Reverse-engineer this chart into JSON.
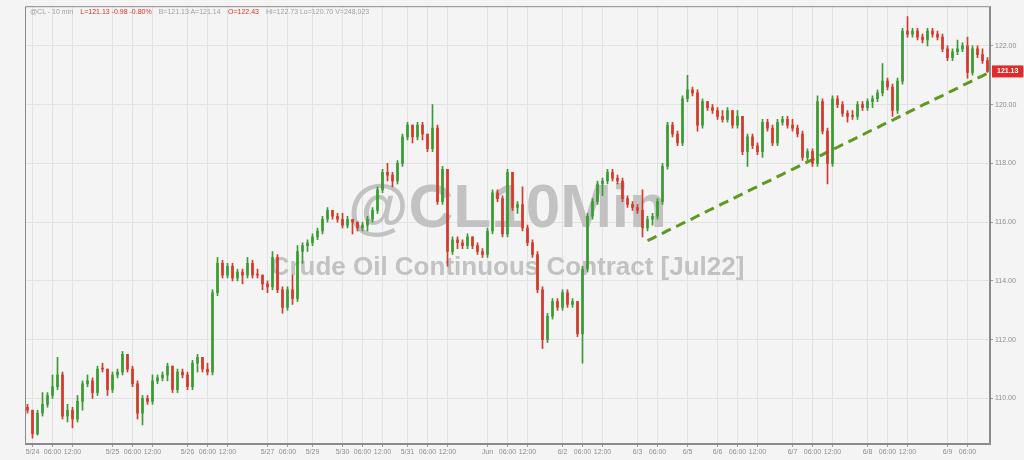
{
  "chart_data": {
    "type": "candlestick",
    "title": "@CL10Min",
    "subtitle": "Crude Oil Continuous Contract [Jul22]",
    "annotations": [
      "@CL - 10 min",
      "L=121.13 -0.98 -0.80%",
      "B=121.13 A=121.14",
      "O=122.43",
      "Hi=122.73 Lo=120.70 V=248,023",
      {
        "text": "121.13",
        "y": 121.13
      }
    ],
    "categories": [
      null,
      "5/24",
      null,
      null,
      null,
      "06:00",
      null,
      null,
      null,
      "12:00",
      null,
      null,
      null,
      null,
      null,
      null,
      null,
      "5/25",
      null,
      null,
      null,
      "06:00",
      null,
      null,
      null,
      "12:00",
      null,
      null,
      null,
      null,
      null,
      null,
      "5/26",
      null,
      null,
      null,
      "06:00",
      null,
      null,
      null,
      "12:00",
      null,
      null,
      null,
      null,
      null,
      null,
      null,
      "5/27",
      null,
      null,
      null,
      "06:00",
      null,
      null,
      null,
      null,
      "5/29",
      null,
      null,
      null,
      null,
      null,
      "5/30",
      null,
      null,
      null,
      "06:00",
      null,
      null,
      null,
      "12:00",
      null,
      null,
      null,
      null,
      "5/31",
      null,
      null,
      null,
      "06:00",
      null,
      null,
      null,
      "12:00",
      null,
      null,
      null,
      null,
      null,
      null,
      null,
      "Jun",
      null,
      null,
      null,
      "06:00",
      null,
      null,
      null,
      "12:00",
      null,
      null,
      null,
      null,
      null,
      null,
      "6/2",
      null,
      null,
      null,
      "06:00",
      null,
      null,
      null,
      "12:00",
      null,
      null,
      null,
      null,
      null,
      null,
      "6/3",
      null,
      null,
      null,
      "06:00",
      null,
      null,
      null,
      null,
      null,
      "6/5",
      null,
      null,
      null,
      null,
      null,
      "6/6",
      null,
      null,
      null,
      "06:00",
      null,
      null,
      null,
      "12:00",
      null,
      null,
      null,
      null,
      null,
      null,
      "6/7",
      null,
      null,
      null,
      "06:00",
      null,
      null,
      null,
      "12:00",
      null,
      null,
      null,
      null,
      null,
      null,
      "6/8",
      null,
      null,
      null,
      "06:00",
      null,
      null,
      null,
      "12:00",
      null,
      null,
      null,
      null,
      null,
      null,
      null,
      "6/9",
      null,
      null,
      null,
      "06:00",
      null,
      null,
      null,
      null
    ],
    "ylim": [
      108.45,
      123.35
    ],
    "yticks": [
      {
        "value": 110,
        "label": "110.00"
      },
      {
        "value": 112,
        "label": "112.00"
      },
      {
        "value": 114,
        "label": "114.00"
      },
      {
        "value": 116,
        "label": "116.00"
      },
      {
        "value": 118,
        "label": "118.00"
      },
      {
        "value": 120,
        "label": "120.00"
      },
      {
        "value": 122,
        "label": "122.00"
      }
    ],
    "grid": true,
    "ohlc": [
      [
        109.7,
        109.8,
        109.5,
        109.6
      ],
      [
        109.6,
        109.6,
        108.65,
        108.8
      ],
      [
        108.8,
        109.6,
        108.75,
        109.5
      ],
      [
        109.5,
        110.2,
        109.4,
        109.8
      ],
      [
        109.8,
        110.2,
        109.7,
        110.1
      ],
      [
        110.1,
        110.8,
        110.0,
        110.4
      ],
      [
        110.4,
        111.4,
        110.3,
        110.8
      ],
      [
        110.8,
        110.9,
        109.3,
        109.4
      ],
      [
        109.4,
        109.8,
        109.2,
        109.6
      ],
      [
        109.6,
        109.7,
        109.0,
        109.3
      ],
      [
        109.3,
        110.1,
        109.2,
        109.9
      ],
      [
        109.9,
        110.6,
        109.6,
        110.5
      ],
      [
        110.5,
        110.8,
        110.4,
        110.6
      ],
      [
        110.6,
        110.7,
        110.0,
        110.2
      ],
      [
        110.2,
        111.1,
        110.1,
        111.0
      ],
      [
        111.0,
        111.2,
        110.9,
        111.0
      ],
      [
        111.0,
        111.0,
        110.1,
        110.3
      ],
      [
        110.3,
        110.9,
        110.2,
        110.8
      ],
      [
        110.8,
        111.0,
        110.7,
        110.9
      ],
      [
        110.9,
        111.6,
        110.8,
        111.5
      ],
      [
        111.5,
        111.5,
        110.9,
        111.0
      ],
      [
        111.0,
        111.1,
        110.4,
        110.5
      ],
      [
        110.5,
        110.6,
        109.3,
        109.5
      ],
      [
        109.5,
        110.1,
        109.1,
        110.0
      ],
      [
        110.0,
        110.1,
        109.8,
        109.9
      ],
      [
        109.9,
        110.8,
        109.8,
        110.6
      ],
      [
        110.6,
        110.8,
        110.5,
        110.7
      ],
      [
        110.7,
        110.9,
        110.6,
        110.8
      ],
      [
        110.8,
        111.2,
        110.6,
        111.1
      ],
      [
        111.1,
        111.1,
        110.2,
        110.3
      ],
      [
        110.3,
        111.0,
        110.2,
        110.9
      ],
      [
        110.9,
        111.0,
        110.7,
        110.8
      ],
      [
        110.8,
        110.9,
        110.3,
        110.4
      ],
      [
        110.4,
        111.3,
        110.3,
        111.2
      ],
      [
        111.2,
        111.5,
        110.9,
        111.4
      ],
      [
        111.4,
        111.4,
        110.9,
        111.0
      ],
      [
        111.0,
        111.2,
        110.8,
        110.9
      ],
      [
        110.9,
        113.7,
        110.8,
        113.6
      ],
      [
        113.6,
        114.8,
        113.5,
        114.6
      ],
      [
        114.6,
        114.7,
        114.1,
        114.2
      ],
      [
        114.2,
        114.6,
        114.1,
        114.5
      ],
      [
        114.5,
        114.6,
        114.0,
        114.1
      ],
      [
        114.1,
        114.4,
        114.0,
        114.3
      ],
      [
        114.3,
        114.4,
        113.9,
        114.2
      ],
      [
        114.2,
        114.8,
        114.1,
        114.6
      ],
      [
        114.6,
        114.7,
        114.1,
        114.2
      ],
      [
        114.2,
        114.4,
        114.1,
        114.2
      ],
      [
        114.2,
        114.2,
        113.7,
        113.9
      ],
      [
        113.9,
        114.0,
        113.6,
        113.8
      ],
      [
        113.8,
        115.0,
        113.7,
        114.8
      ],
      [
        114.8,
        114.9,
        113.6,
        113.7
      ],
      [
        113.7,
        113.8,
        112.9,
        113.1
      ],
      [
        113.1,
        113.8,
        113.0,
        113.7
      ],
      [
        113.7,
        114.2,
        113.2,
        113.4
      ],
      [
        113.4,
        115.2,
        113.3,
        115.0
      ],
      [
        115.0,
        115.3,
        114.6,
        115.2
      ],
      [
        115.2,
        115.4,
        115.0,
        115.3
      ],
      [
        115.3,
        115.6,
        115.2,
        115.5
      ],
      [
        115.5,
        115.8,
        115.4,
        115.7
      ],
      [
        115.7,
        116.2,
        115.6,
        116.1
      ],
      [
        116.1,
        116.5,
        116.0,
        116.4
      ],
      [
        116.4,
        116.4,
        116.1,
        116.2
      ],
      [
        116.2,
        116.3,
        116.0,
        116.1
      ],
      [
        116.1,
        116.3,
        115.8,
        115.9
      ],
      [
        115.9,
        116.2,
        115.8,
        116.1
      ],
      [
        116.1,
        116.1,
        115.6,
        116.0
      ],
      [
        116.0,
        116.0,
        115.7,
        115.8
      ],
      [
        115.8,
        116.0,
        115.7,
        115.9
      ],
      [
        115.9,
        116.2,
        115.7,
        116.1
      ],
      [
        116.1,
        116.5,
        116.0,
        116.4
      ],
      [
        116.4,
        117.2,
        116.3,
        117.1
      ],
      [
        117.1,
        117.8,
        117.0,
        117.7
      ],
      [
        117.7,
        118.0,
        117.4,
        117.6
      ],
      [
        117.6,
        117.7,
        117.2,
        117.4
      ],
      [
        117.4,
        118.1,
        117.3,
        118.0
      ],
      [
        118.0,
        119.0,
        117.9,
        118.9
      ],
      [
        118.9,
        119.4,
        118.8,
        119.3
      ],
      [
        119.3,
        119.3,
        118.7,
        118.9
      ],
      [
        118.9,
        119.4,
        118.8,
        119.3
      ],
      [
        119.3,
        119.4,
        118.8,
        119.0
      ],
      [
        119.0,
        119.0,
        118.4,
        118.5
      ],
      [
        118.5,
        120.0,
        118.4,
        119.2
      ],
      [
        119.2,
        119.3,
        116.6,
        116.7
      ],
      [
        116.7,
        117.9,
        116.6,
        117.8
      ],
      [
        117.8,
        117.8,
        114.5,
        115.0
      ],
      [
        115.0,
        115.5,
        114.9,
        115.4
      ],
      [
        115.4,
        115.5,
        115.1,
        115.3
      ],
      [
        115.3,
        115.4,
        115.1,
        115.2
      ],
      [
        115.2,
        115.6,
        115.1,
        115.5
      ],
      [
        115.5,
        115.5,
        115.1,
        115.2
      ],
      [
        115.2,
        115.3,
        114.9,
        115.0
      ],
      [
        115.0,
        115.1,
        114.8,
        114.9
      ],
      [
        114.9,
        115.8,
        114.8,
        115.7
      ],
      [
        115.7,
        117.1,
        115.6,
        117.0
      ],
      [
        117.0,
        117.1,
        116.7,
        116.8
      ],
      [
        116.8,
        116.9,
        115.5,
        115.6
      ],
      [
        115.6,
        117.8,
        115.5,
        117.7
      ],
      [
        117.7,
        117.7,
        116.4,
        116.5
      ],
      [
        116.5,
        116.7,
        116.3,
        116.6
      ],
      [
        116.6,
        117.2,
        115.7,
        115.8
      ],
      [
        115.8,
        115.9,
        115.2,
        115.3
      ],
      [
        115.3,
        115.4,
        114.8,
        114.9
      ],
      [
        114.9,
        115.0,
        113.6,
        113.7
      ],
      [
        113.7,
        113.8,
        111.7,
        112.0
      ],
      [
        112.0,
        112.9,
        111.9,
        112.8
      ],
      [
        112.8,
        113.4,
        112.7,
        113.3
      ],
      [
        113.3,
        113.4,
        113.0,
        113.1
      ],
      [
        113.1,
        113.7,
        113.0,
        113.6
      ],
      [
        113.6,
        113.7,
        113.1,
        113.2
      ],
      [
        113.2,
        113.4,
        113.1,
        113.3
      ],
      [
        113.3,
        113.3,
        112.1,
        112.2
      ],
      [
        112.2,
        114.5,
        111.2,
        114.4
      ],
      [
        114.4,
        116.3,
        114.3,
        116.2
      ],
      [
        116.2,
        116.8,
        116.1,
        116.7
      ],
      [
        116.7,
        117.4,
        116.6,
        117.3
      ],
      [
        117.3,
        117.5,
        116.9,
        117.4
      ],
      [
        117.4,
        117.8,
        117.3,
        117.7
      ],
      [
        117.7,
        117.8,
        117.4,
        117.5
      ],
      [
        117.5,
        117.6,
        117.3,
        117.4
      ],
      [
        117.4,
        117.5,
        116.7,
        116.8
      ],
      [
        116.8,
        116.9,
        116.5,
        116.6
      ],
      [
        116.6,
        116.7,
        116.4,
        116.5
      ],
      [
        116.5,
        116.6,
        116.3,
        116.4
      ],
      [
        116.4,
        117.1,
        115.5,
        115.8
      ],
      [
        115.8,
        116.2,
        115.7,
        116.1
      ],
      [
        116.1,
        116.3,
        115.9,
        116.2
      ],
      [
        116.2,
        116.8,
        116.1,
        116.7
      ],
      [
        116.7,
        118.0,
        116.6,
        117.9
      ],
      [
        117.9,
        119.4,
        117.8,
        119.3
      ],
      [
        119.3,
        119.4,
        118.9,
        119.0
      ],
      [
        119.0,
        119.1,
        118.6,
        118.7
      ],
      [
        118.7,
        120.3,
        118.6,
        120.2
      ],
      [
        120.2,
        121.0,
        120.1,
        120.5
      ],
      [
        120.5,
        120.6,
        120.3,
        120.4
      ],
      [
        120.4,
        120.5,
        119.1,
        119.3
      ],
      [
        119.3,
        120.2,
        119.2,
        120.1
      ],
      [
        120.1,
        120.1,
        119.8,
        119.9
      ],
      [
        119.9,
        120.0,
        119.7,
        119.8
      ],
      [
        119.8,
        119.9,
        119.5,
        119.6
      ],
      [
        119.6,
        119.8,
        119.4,
        119.5
      ],
      [
        119.5,
        119.9,
        119.4,
        119.8
      ],
      [
        119.8,
        119.8,
        119.2,
        119.3
      ],
      [
        119.3,
        119.8,
        119.2,
        119.6
      ],
      [
        119.6,
        119.6,
        118.3,
        118.4
      ],
      [
        118.4,
        119.0,
        117.9,
        118.9
      ],
      [
        118.9,
        119.0,
        118.5,
        118.6
      ],
      [
        118.6,
        118.7,
        118.3,
        118.4
      ],
      [
        118.4,
        119.5,
        118.2,
        119.4
      ],
      [
        119.4,
        119.5,
        119.1,
        119.2
      ],
      [
        119.2,
        119.3,
        118.6,
        118.7
      ],
      [
        118.7,
        119.5,
        118.6,
        119.4
      ],
      [
        119.4,
        119.6,
        119.3,
        119.5
      ],
      [
        119.5,
        119.6,
        119.2,
        119.3
      ],
      [
        119.3,
        119.5,
        119.1,
        119.2
      ],
      [
        119.2,
        119.3,
        118.9,
        119.0
      ],
      [
        119.0,
        119.1,
        118.1,
        118.2
      ],
      [
        118.2,
        118.5,
        118.1,
        118.4
      ],
      [
        118.4,
        118.5,
        117.9,
        118.0
      ],
      [
        118.0,
        120.3,
        117.9,
        120.1
      ],
      [
        120.1,
        120.2,
        119.0,
        119.1
      ],
      [
        119.1,
        119.2,
        117.3,
        118.0
      ],
      [
        118.0,
        120.3,
        117.9,
        120.2
      ],
      [
        120.2,
        120.3,
        119.9,
        120.0
      ],
      [
        120.0,
        120.1,
        119.6,
        119.7
      ],
      [
        119.7,
        119.8,
        119.4,
        119.6
      ],
      [
        119.6,
        119.8,
        119.5,
        119.6
      ],
      [
        119.6,
        120.1,
        119.5,
        120.0
      ],
      [
        120.0,
        120.1,
        119.8,
        119.9
      ],
      [
        119.9,
        120.2,
        119.8,
        120.1
      ],
      [
        120.1,
        120.3,
        119.9,
        120.2
      ],
      [
        120.2,
        120.5,
        120.1,
        120.4
      ],
      [
        120.4,
        121.4,
        120.3,
        120.8
      ],
      [
        120.8,
        120.9,
        120.5,
        120.6
      ],
      [
        120.6,
        120.7,
        119.6,
        119.8
      ],
      [
        119.8,
        120.9,
        119.7,
        120.8
      ],
      [
        120.8,
        122.6,
        120.7,
        122.5
      ],
      [
        122.5,
        123.0,
        122.3,
        122.4
      ],
      [
        122.4,
        122.6,
        122.3,
        122.5
      ],
      [
        122.5,
        122.6,
        122.2,
        122.3
      ],
      [
        122.3,
        122.4,
        122.1,
        122.2
      ],
      [
        122.2,
        122.6,
        122.0,
        122.5
      ],
      [
        122.5,
        122.6,
        122.3,
        122.4
      ],
      [
        122.4,
        122.5,
        122.2,
        122.3
      ],
      [
        122.3,
        122.4,
        121.8,
        121.9
      ],
      [
        121.9,
        122.0,
        121.5,
        121.6
      ],
      [
        121.6,
        121.9,
        121.5,
        121.8
      ],
      [
        121.8,
        122.2,
        121.7,
        121.9
      ],
      [
        121.9,
        122.1,
        121.8,
        122.0
      ],
      [
        122.0,
        122.3,
        120.9,
        121.1
      ],
      [
        121.1,
        122.0,
        121.0,
        121.9
      ],
      [
        121.9,
        122.0,
        121.6,
        121.7
      ],
      [
        121.7,
        121.9,
        121.4,
        121.5
      ],
      [
        121.5,
        121.6,
        121.1,
        121.13
      ]
    ],
    "colors": [
      "#d23a2a",
      "#d23a2a",
      "#3c9a33",
      "#3c9a33",
      "#3c9a33",
      "#3c9a33",
      "#3c9a33",
      "#d23a2a",
      "#3c9a33",
      "#d23a2a",
      "#3c9a33",
      "#3c9a33",
      "#3c9a33",
      "#d23a2a",
      "#3c9a33",
      "#d23a2a",
      "#d23a2a",
      "#3c9a33",
      "#3c9a33",
      "#3c9a33",
      "#d23a2a",
      "#d23a2a",
      "#d23a2a",
      "#3c9a33",
      "#d23a2a",
      "#3c9a33",
      "#3c9a33",
      "#3c9a33",
      "#3c9a33",
      "#d23a2a",
      "#3c9a33",
      "#d23a2a",
      "#d23a2a",
      "#3c9a33",
      "#3c9a33",
      "#d23a2a",
      "#d23a2a",
      "#3c9a33",
      "#3c9a33",
      "#d23a2a",
      "#3c9a33",
      "#d23a2a",
      "#3c9a33",
      "#d23a2a",
      "#3c9a33",
      "#d23a2a",
      "#d23a2a",
      "#d23a2a",
      "#d23a2a",
      "#3c9a33",
      "#d23a2a",
      "#d23a2a",
      "#3c9a33",
      "#d23a2a",
      "#3c9a33",
      "#3c9a33",
      "#3c9a33",
      "#3c9a33",
      "#3c9a33",
      "#3c9a33",
      "#3c9a33",
      "#d23a2a",
      "#d23a2a",
      "#d23a2a",
      "#3c9a33",
      "#d23a2a",
      "#d23a2a",
      "#3c9a33",
      "#3c9a33",
      "#3c9a33",
      "#3c9a33",
      "#3c9a33",
      "#d23a2a",
      "#d23a2a",
      "#3c9a33",
      "#3c9a33",
      "#3c9a33",
      "#d23a2a",
      "#3c9a33",
      "#d23a2a",
      "#d23a2a",
      "#3c9a33",
      "#d23a2a",
      "#3c9a33",
      "#d23a2a",
      "#3c9a33",
      "#d23a2a",
      "#d23a2a",
      "#3c9a33",
      "#d23a2a",
      "#d23a2a",
      "#d23a2a",
      "#3c9a33",
      "#3c9a33",
      "#d23a2a",
      "#d23a2a",
      "#3c9a33",
      "#d23a2a",
      "#3c9a33",
      "#d23a2a",
      "#d23a2a",
      "#d23a2a",
      "#d23a2a",
      "#d23a2a",
      "#3c9a33",
      "#3c9a33",
      "#d23a2a",
      "#3c9a33",
      "#d23a2a",
      "#3c9a33",
      "#d23a2a",
      "#3c9a33",
      "#3c9a33",
      "#3c9a33",
      "#3c9a33",
      "#3c9a33",
      "#3c9a33",
      "#d23a2a",
      "#d23a2a",
      "#d23a2a",
      "#d23a2a",
      "#d23a2a",
      "#d23a2a",
      "#d23a2a",
      "#3c9a33",
      "#3c9a33",
      "#3c9a33",
      "#3c9a33",
      "#3c9a33",
      "#d23a2a",
      "#d23a2a",
      "#3c9a33",
      "#3c9a33",
      "#d23a2a",
      "#d23a2a",
      "#3c9a33",
      "#d23a2a",
      "#d23a2a",
      "#d23a2a",
      "#d23a2a",
      "#3c9a33",
      "#d23a2a",
      "#3c9a33",
      "#d23a2a",
      "#3c9a33",
      "#d23a2a",
      "#d23a2a",
      "#3c9a33",
      "#d23a2a",
      "#d23a2a",
      "#3c9a33",
      "#3c9a33",
      "#d23a2a",
      "#d23a2a",
      "#d23a2a",
      "#d23a2a",
      "#3c9a33",
      "#d23a2a",
      "#3c9a33",
      "#d23a2a",
      "#d23a2a",
      "#3c9a33",
      "#d23a2a",
      "#d23a2a",
      "#d23a2a",
      "#d23a2a",
      "#3c9a33",
      "#d23a2a",
      "#3c9a33",
      "#3c9a33",
      "#3c9a33",
      "#3c9a33",
      "#d23a2a",
      "#d23a2a",
      "#3c9a33",
      "#3c9a33",
      "#d23a2a",
      "#3c9a33",
      "#d23a2a",
      "#d23a2a",
      "#3c9a33",
      "#d23a2a",
      "#d23a2a",
      "#d23a2a",
      "#d23a2a",
      "#3c9a33",
      "#3c9a33",
      "#3c9a33",
      "#d23a2a",
      "#3c9a33",
      "#d23a2a",
      "#d23a2a",
      "#d23a2a"
    ],
    "series": [
      {
        "type": "line",
        "color": "#5e9a1f",
        "line_style": "dashed",
        "marker": "none",
        "values": [
          null,
          null,
          null,
          null,
          null,
          null,
          null,
          null,
          null,
          null,
          null,
          null,
          null,
          null,
          null,
          null,
          null,
          null,
          null,
          null,
          null,
          null,
          null,
          null,
          null,
          null,
          null,
          null,
          null,
          null,
          null,
          null,
          null,
          null,
          null,
          null,
          null,
          null,
          null,
          null,
          null,
          null,
          null,
          null,
          null,
          null,
          null,
          null,
          null,
          null,
          null,
          null,
          null,
          null,
          null,
          null,
          null,
          null,
          null,
          null,
          null,
          null,
          null,
          null,
          null,
          null,
          null,
          null,
          null,
          null,
          null,
          null,
          null,
          null,
          null,
          null,
          null,
          null,
          null,
          null,
          null,
          null,
          null,
          null,
          null,
          null,
          null,
          null,
          null,
          null,
          null,
          null,
          null,
          null,
          null,
          null,
          null,
          null,
          null,
          null,
          null,
          null,
          null,
          null,
          null,
          null,
          null,
          null,
          null,
          null,
          null,
          null,
          null,
          null,
          null,
          null,
          null,
          null,
          null,
          null,
          null,
          null,
          null,
          null,
          115.37,
          115.45,
          115.54,
          115.62,
          115.71,
          115.79,
          115.87,
          115.96,
          116.04,
          116.12,
          116.21,
          116.29,
          116.38,
          116.46,
          116.54,
          116.63,
          116.71,
          116.79,
          116.88,
          116.96,
          117.05,
          117.13,
          117.21,
          117.3,
          117.38,
          117.46,
          117.55,
          117.63,
          117.72,
          117.8,
          117.88,
          117.97,
          118.05,
          118.13,
          118.22,
          118.3,
          118.39,
          118.47,
          118.55,
          118.64,
          118.72,
          118.8,
          118.89,
          118.97,
          119.06,
          119.14,
          119.22,
          119.31,
          119.39,
          119.47,
          119.56,
          119.64,
          119.73,
          119.81,
          119.89,
          119.98,
          120.06,
          120.14,
          120.23,
          120.31,
          120.4,
          120.48,
          120.56,
          120.65,
          120.73,
          120.81,
          120.9,
          120.98,
          121.07
        ]
      }
    ]
  }
}
